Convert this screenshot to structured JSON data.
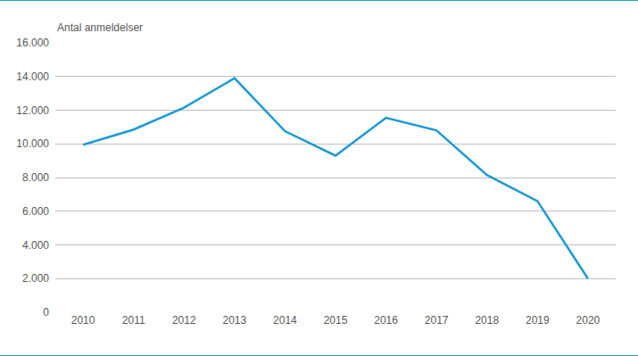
{
  "chart_data": {
    "type": "line",
    "y_label": "Antal anmeldelser",
    "categories": [
      "2010",
      "2011",
      "2012",
      "2013",
      "2014",
      "2015",
      "2016",
      "2017",
      "2018",
      "2019",
      "2020"
    ],
    "values": [
      9950,
      10850,
      12150,
      13900,
      10750,
      9300,
      11550,
      10800,
      8150,
      6600,
      2000
    ],
    "color": "#1b9ad6",
    "ylim": [
      0,
      16000
    ],
    "yticks": [
      {
        "value": 0,
        "label": "0"
      },
      {
        "value": 2000,
        "label": "2.000"
      },
      {
        "value": 4000,
        "label": "4.000"
      },
      {
        "value": 6000,
        "label": "6.000"
      },
      {
        "value": 8000,
        "label": "8.000"
      },
      {
        "value": 10000,
        "label": "10.000"
      },
      {
        "value": 12000,
        "label": "12.000"
      },
      {
        "value": 14000,
        "label": "14.000"
      },
      {
        "value": 16000,
        "label": "16.000"
      }
    ],
    "grid": true
  }
}
